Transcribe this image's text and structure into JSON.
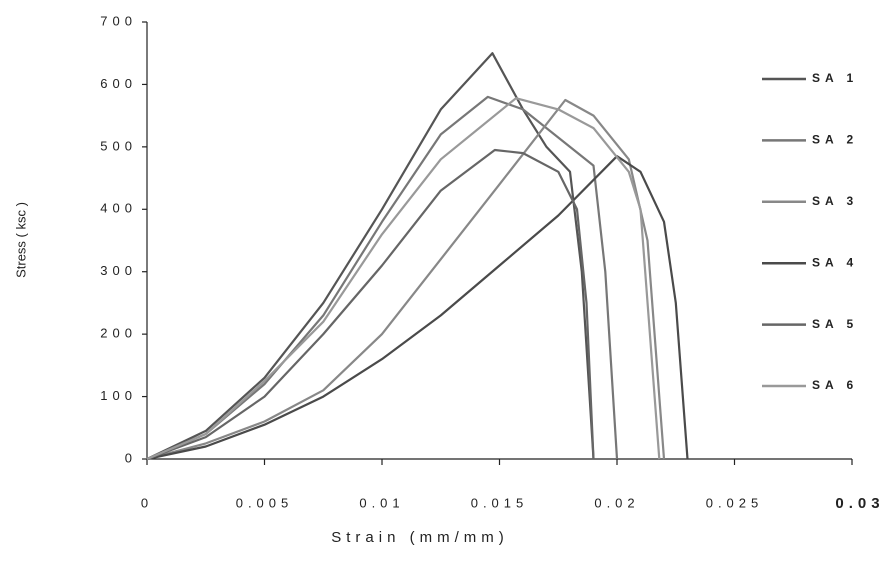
{
  "chart_data": {
    "type": "line",
    "x_label": "Strain  (mm/mm)",
    "y_label": "Stress ( ksc )",
    "xlim": [
      0,
      0.03
    ],
    "xticks": [
      0,
      0.005,
      0.01,
      0.015,
      0.02,
      0.025,
      0.03
    ],
    "ylim": [
      0,
      700
    ],
    "yticks": [
      0,
      100,
      200,
      300,
      400,
      500,
      600,
      700
    ],
    "grid": false,
    "legend": "right",
    "series": [
      {
        "name": "SA 1",
        "color": "#555555",
        "x": [
          0,
          0.0025,
          0.005,
          0.0075,
          0.01,
          0.0125,
          0.0147,
          0.016,
          0.017,
          0.018,
          0.0185,
          0.019
        ],
        "values": [
          0,
          45,
          130,
          250,
          400,
          560,
          650,
          560,
          500,
          460,
          300,
          0
        ]
      },
      {
        "name": "SA 2",
        "color": "#777777",
        "x": [
          0,
          0.0025,
          0.005,
          0.0075,
          0.01,
          0.0125,
          0.0145,
          0.016,
          0.018,
          0.019,
          0.0195,
          0.02
        ],
        "values": [
          0,
          40,
          120,
          230,
          380,
          520,
          580,
          560,
          500,
          470,
          300,
          0
        ]
      },
      {
        "name": "SA 3",
        "color": "#888888",
        "x": [
          0,
          0.0025,
          0.005,
          0.0075,
          0.01,
          0.0125,
          0.015,
          0.0178,
          0.019,
          0.0205,
          0.0213,
          0.022
        ],
        "values": [
          0,
          25,
          60,
          110,
          200,
          320,
          440,
          575,
          550,
          480,
          350,
          0
        ]
      },
      {
        "name": "SA 4",
        "color": "#4a4a4a",
        "x": [
          0,
          0.0025,
          0.005,
          0.0075,
          0.01,
          0.0125,
          0.015,
          0.0175,
          0.02,
          0.021,
          0.022,
          0.0225,
          0.023
        ],
        "values": [
          0,
          20,
          55,
          100,
          160,
          230,
          310,
          390,
          485,
          460,
          380,
          250,
          0
        ]
      },
      {
        "name": "SA 5",
        "color": "#666666",
        "x": [
          0,
          0.0025,
          0.005,
          0.0075,
          0.01,
          0.0125,
          0.0148,
          0.016,
          0.0175,
          0.0183,
          0.0187,
          0.019
        ],
        "values": [
          0,
          35,
          100,
          200,
          310,
          430,
          495,
          490,
          460,
          400,
          250,
          0
        ]
      },
      {
        "name": "SA 6",
        "color": "#999999",
        "x": [
          0,
          0.0025,
          0.005,
          0.0075,
          0.01,
          0.0125,
          0.0157,
          0.0175,
          0.019,
          0.0205,
          0.021,
          0.0218
        ],
        "values": [
          0,
          40,
          125,
          220,
          360,
          480,
          578,
          560,
          530,
          460,
          400,
          0
        ]
      }
    ]
  }
}
